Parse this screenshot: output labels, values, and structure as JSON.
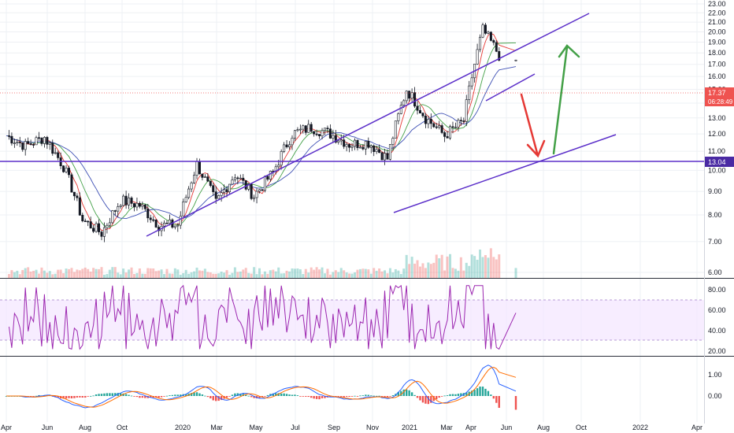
{
  "chart_data": [
    {
      "type": "candlestick",
      "pane": "price",
      "y_scale": "log",
      "ylim": [
        5.8,
        23.5
      ],
      "y_ticks": [
        "23.00",
        "22.00",
        "21.00",
        "20.00",
        "19.00",
        "18.00",
        "17.00",
        "16.00",
        "15.00",
        "14.00",
        "13.00",
        "12.00",
        "11.00",
        "10.00",
        "9.00",
        "8.00",
        "7.00",
        "6.00"
      ],
      "x_ticks": [
        "Apr",
        "Jun",
        "Aug",
        "Oct",
        "2020",
        "Mar",
        "May",
        "Jul",
        "Sep",
        "Nov",
        "2021",
        "Mar",
        "Apr",
        "Jun",
        "Aug",
        "Oct",
        "2022",
        "Apr"
      ],
      "last_price": "17.37",
      "countdown": "06:28:49",
      "horizontal_level": "13.04",
      "approx_close_series": [
        {
          "date": "2019-04",
          "close": 11.9
        },
        {
          "date": "2019-05",
          "close": 11.3
        },
        {
          "date": "2019-06",
          "close": 11.8
        },
        {
          "date": "2019-07",
          "close": 10.2
        },
        {
          "date": "2019-08",
          "close": 7.8
        },
        {
          "date": "2019-09",
          "close": 7.3
        },
        {
          "date": "2019-10",
          "close": 8.6
        },
        {
          "date": "2019-11",
          "close": 8.4
        },
        {
          "date": "2019-12",
          "close": 7.6
        },
        {
          "date": "2020-01",
          "close": 7.6
        },
        {
          "date": "2020-02",
          "close": 10.3
        },
        {
          "date": "2020-03",
          "close": 8.5
        },
        {
          "date": "2020-04",
          "close": 9.8
        },
        {
          "date": "2020-05",
          "close": 8.8
        },
        {
          "date": "2020-06",
          "close": 9.9
        },
        {
          "date": "2020-07",
          "close": 12.0
        },
        {
          "date": "2020-08",
          "close": 12.4
        },
        {
          "date": "2020-09",
          "close": 12.0
        },
        {
          "date": "2020-10",
          "close": 11.4
        },
        {
          "date": "2020-11",
          "close": 11.5
        },
        {
          "date": "2020-12",
          "close": 10.6
        },
        {
          "date": "2021-01",
          "close": 15.0
        },
        {
          "date": "2021-02",
          "close": 13.0
        },
        {
          "date": "2021-03",
          "close": 11.9
        },
        {
          "date": "2021-04",
          "close": 12.8
        },
        {
          "date": "2021-05",
          "close": 20.2
        },
        {
          "date": "2021-06",
          "close": 17.4
        }
      ],
      "colors": {
        "up": "#26a69a",
        "down": "#ef5350",
        "candle": "#131722",
        "trend": "#5b2fc9",
        "ma_red": "#e53935",
        "ma_green": "#43a047",
        "ma_blue": "#3f51b5",
        "arrow_down": "#e53935",
        "arrow_up": "#43a047",
        "price_label": "#ef5350",
        "level_label": "#4a2aa3"
      }
    },
    {
      "type": "line",
      "pane": "rsi",
      "ylim": [
        15,
        90
      ],
      "y_ticks": [
        "80.00",
        "60.00",
        "40.00",
        "20.00"
      ],
      "band": [
        30,
        70
      ],
      "colors": {
        "line": "#9c27b0",
        "band": "#f3e5ff"
      }
    },
    {
      "type": "line",
      "pane": "macd",
      "ylim": [
        -1.4,
        2.0
      ],
      "y_ticks": [
        "1.00",
        "0.00"
      ],
      "colors": {
        "macd": "#2962ff",
        "signal": "#ff6d00",
        "hist_up": "#26a69a",
        "hist_down": "#ef5350"
      }
    }
  ]
}
